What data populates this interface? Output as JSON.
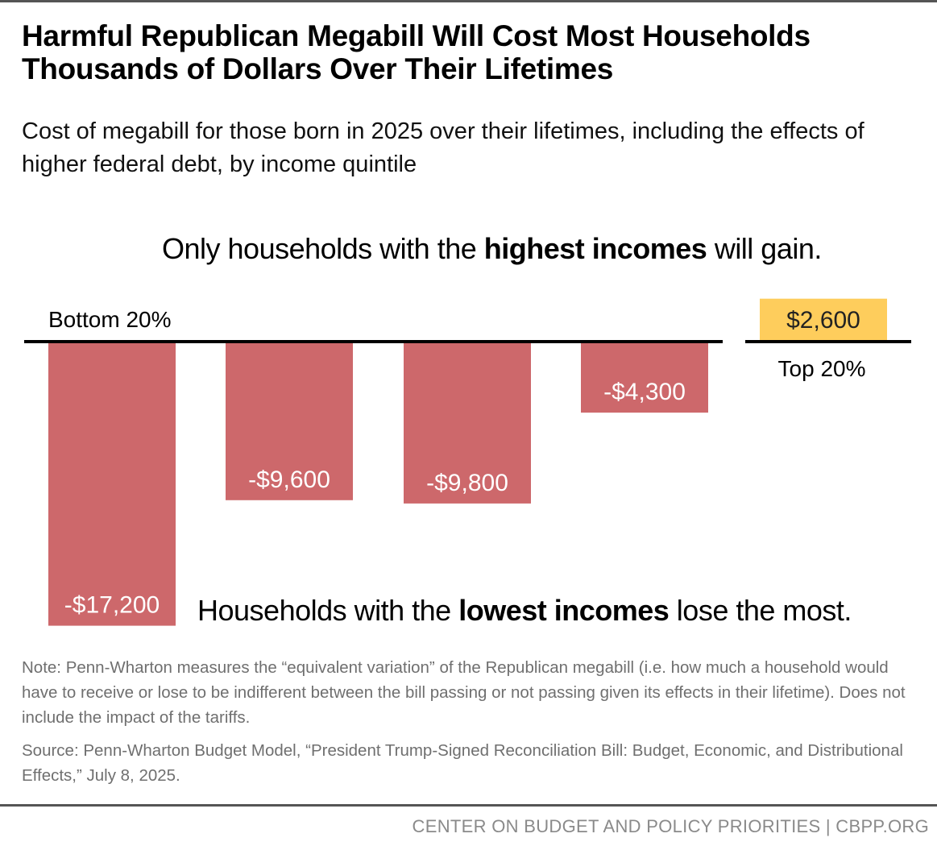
{
  "title": "Harmful Republican Megabill Will Cost Most Households Thousands of Dollars Over Their Lifetimes",
  "subtitle": "Cost of megabill for those born in 2025 over their lifetimes, including the effects of higher federal debt, by income quintile",
  "annotations": {
    "top_pre": "Only households with the ",
    "top_bold": "highest incomes",
    "top_post": " will gain.",
    "bottom_pre": "Households with the ",
    "bottom_bold": "lowest incomes",
    "bottom_post": " lose the most."
  },
  "chart_data": {
    "type": "bar",
    "categories": [
      "Bottom 20%",
      "",
      "",
      "",
      "Top 20%"
    ],
    "values": [
      -17200,
      -9600,
      -9800,
      -4300,
      2600
    ],
    "data_labels": [
      "-$17,200",
      "-$9,600",
      "-$9,800",
      "-$4,300",
      "$2,600"
    ],
    "colors": {
      "loss": "#cd686b",
      "gain": "#fecd5c"
    },
    "grid": false
  },
  "note": "Note: Penn-Wharton measures the “equivalent variation” of the Republican megabill (i.e. how much a household would have to receive or lose to be indifferent between the bill passing or not passing given its effects in their lifetime). Does not include the impact of the tariffs.",
  "source": "Source: Penn-Wharton Budget Model, “President Trump-Signed Reconciliation Bill: Budget, Economic, and Distributional Effects,” July 8, 2025.",
  "footer": "CENTER ON BUDGET AND POLICY PRIORITIES | CBPP.ORG"
}
